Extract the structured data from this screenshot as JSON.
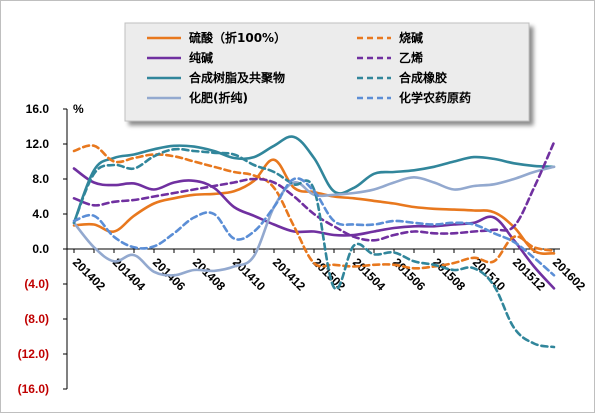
{
  "chart_data": {
    "type": "line",
    "unit_label": "%",
    "ylim": [
      -16,
      16
    ],
    "yticks": [
      16,
      12,
      8,
      4,
      0,
      -4,
      -8,
      -12,
      -16
    ],
    "ytick_labels": [
      "16.0",
      "12.0",
      "8.0",
      "4.0",
      "0.0",
      "(4.0)",
      "(8.0)",
      "(12.0)",
      "(16.0)"
    ],
    "x": [
      "201402",
      "201403",
      "201404",
      "201405",
      "201406",
      "201407",
      "201408",
      "201409",
      "201410",
      "201411",
      "201412",
      "201501",
      "201502",
      "201503",
      "201504",
      "201505",
      "201506",
      "201507",
      "201508",
      "201509",
      "201510",
      "201511",
      "201512",
      "201601",
      "201602"
    ],
    "xtick_labels": [
      "201402",
      "201404",
      "201406",
      "201408",
      "201410",
      "201412",
      "201502",
      "201504",
      "201506",
      "201508",
      "201510",
      "201512",
      "201602"
    ],
    "legend_position": "top",
    "grid": false,
    "series": [
      {
        "name": "硫酸（折100%）",
        "color": "#e8781e",
        "dash": "solid",
        "values": [
          2.7,
          2.8,
          2.0,
          3.8,
          5.2,
          5.8,
          6.2,
          6.3,
          6.6,
          7.8,
          10.2,
          7.0,
          6.5,
          6.0,
          5.8,
          5.5,
          5.2,
          4.8,
          4.6,
          4.5,
          4.4,
          4.2,
          2.5,
          -0.2,
          -0.5
        ]
      },
      {
        "name": "纯碱",
        "color": "#7030a0",
        "dash": "solid",
        "values": [
          9.2,
          7.6,
          7.3,
          7.5,
          6.8,
          7.6,
          7.8,
          7.0,
          4.8,
          3.8,
          2.8,
          2.0,
          2.0,
          1.6,
          1.6,
          2.0,
          2.4,
          2.6,
          2.6,
          2.8,
          3.0,
          3.6,
          1.0,
          -2.0,
          -4.5
        ]
      },
      {
        "name": "合成树脂及共聚物",
        "color": "#31869b",
        "dash": "solid",
        "values": [
          3.0,
          9.0,
          10.4,
          10.8,
          11.4,
          11.8,
          11.7,
          11.2,
          10.4,
          10.5,
          11.8,
          12.8,
          10.4,
          6.6,
          7.0,
          8.6,
          8.8,
          9.0,
          9.4,
          10.0,
          10.5,
          10.3,
          9.8,
          9.5,
          9.4
        ]
      },
      {
        "name": "化肥(折纯)",
        "color": "#93a9cf",
        "dash": "solid",
        "values": [
          3.0,
          0.2,
          -1.4,
          -0.7,
          -2.6,
          -3.0,
          -2.4,
          -2.5,
          -2.0,
          -0.8,
          4.8,
          7.6,
          6.2,
          6.2,
          6.4,
          6.8,
          7.6,
          8.2,
          7.6,
          6.8,
          7.2,
          7.4,
          8.0,
          8.8,
          9.4
        ]
      },
      {
        "name": "烧碱",
        "color": "#e8781e",
        "dash": "dash",
        "values": [
          11.2,
          11.8,
          10.0,
          10.4,
          10.8,
          10.6,
          10.0,
          9.4,
          8.8,
          8.4,
          7.0,
          2.6,
          -1.6,
          -1.8,
          -2.0,
          -1.8,
          -1.8,
          -2.2,
          -2.0,
          -1.6,
          -1.0,
          -1.4,
          1.4,
          0.2,
          -0.2
        ]
      },
      {
        "name": "乙烯",
        "color": "#7030a0",
        "dash": "dash",
        "values": [
          5.8,
          5.0,
          5.4,
          5.6,
          6.0,
          6.4,
          6.8,
          7.2,
          7.6,
          8.0,
          7.6,
          6.0,
          4.0,
          2.6,
          1.4,
          1.0,
          1.6,
          2.0,
          1.8,
          1.8,
          2.0,
          2.2,
          2.6,
          7.0,
          12.2
        ]
      },
      {
        "name": "合成橡胶",
        "color": "#31869b",
        "dash": "dash",
        "values": [
          3.0,
          8.6,
          9.6,
          9.2,
          10.6,
          11.4,
          11.2,
          11.0,
          10.8,
          9.6,
          8.8,
          7.4,
          6.8,
          -4.4,
          0.4,
          -0.6,
          -0.4,
          -1.4,
          -1.8,
          -2.4,
          -2.2,
          -4.2,
          -9.0,
          -10.8,
          -11.2
        ]
      },
      {
        "name": "化学农药原药",
        "color": "#5b8ed6",
        "dash": "dash",
        "values": [
          3.2,
          3.8,
          1.4,
          0.2,
          0.3,
          1.8,
          3.6,
          4.0,
          1.2,
          2.0,
          4.8,
          8.0,
          6.6,
          3.2,
          2.8,
          2.8,
          3.2,
          3.0,
          2.8,
          3.0,
          2.8,
          1.8,
          0.8,
          -1.0,
          -3.0
        ]
      }
    ],
    "legend_order": [
      0,
      4,
      1,
      5,
      2,
      6,
      3,
      7
    ]
  }
}
